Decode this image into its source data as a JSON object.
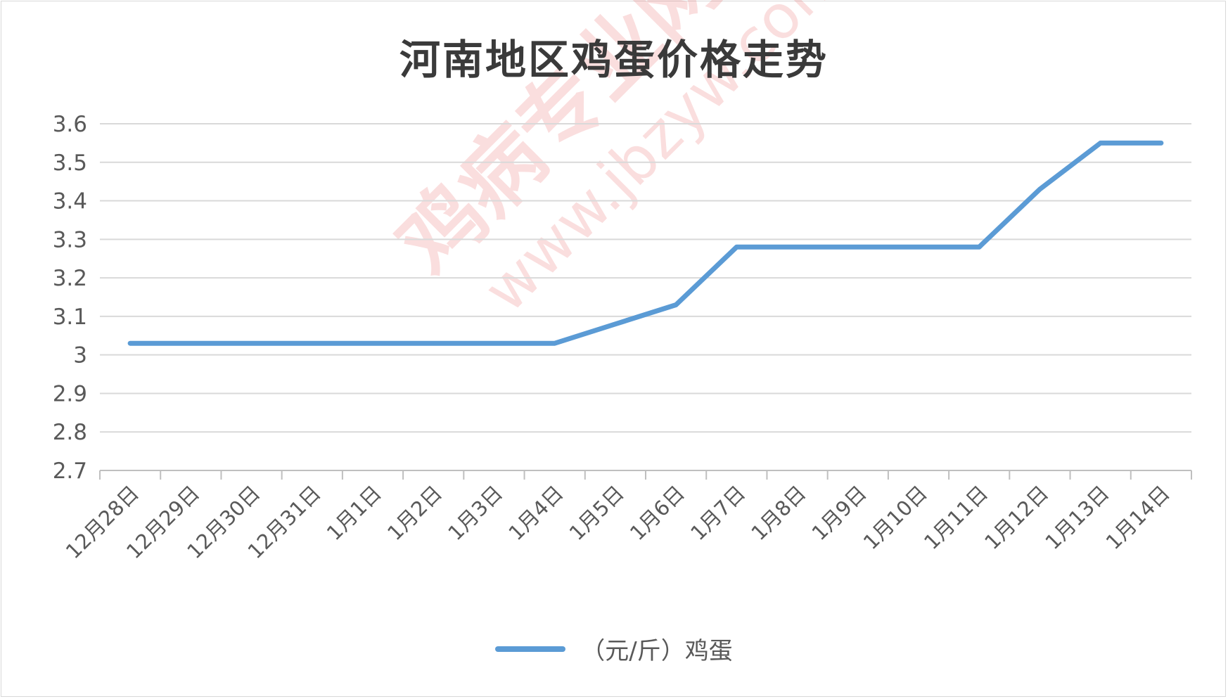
{
  "title": "河南地区鸡蛋价格走势",
  "watermark": {
    "main": "鸡病专业网",
    "url": "www.jbzyw.com"
  },
  "colors": {
    "series": "#5b9bd5",
    "grid": "#d9d9d9",
    "axis": "#bfbfbf",
    "text": "#595959",
    "title": "#3a3a3a"
  },
  "chart_data": {
    "type": "line",
    "title": "河南地区鸡蛋价格走势",
    "xlabel": "",
    "ylabel": "",
    "ylim": [
      2.7,
      3.6
    ],
    "yticks": [
      2.7,
      2.8,
      2.9,
      3,
      3.1,
      3.2,
      3.3,
      3.4,
      3.5,
      3.6
    ],
    "ytick_labels": [
      "2.7",
      "2.8",
      "2.9",
      "3",
      "3.1",
      "3.2",
      "3.3",
      "3.4",
      "3.5",
      "3.6"
    ],
    "grid": true,
    "legend": "bottom",
    "categories": [
      "12月28日",
      "12月29日",
      "12月30日",
      "12月31日",
      "1月1日",
      "1月2日",
      "1月3日",
      "1月4日",
      "1月5日",
      "1月6日",
      "1月7日",
      "1月8日",
      "1月9日",
      "1月10日",
      "1月11日",
      "1月12日",
      "1月13日",
      "1月14日"
    ],
    "series": [
      {
        "name": "（元/斤）鸡蛋",
        "values": [
          3.03,
          3.03,
          3.03,
          3.03,
          3.03,
          3.03,
          3.03,
          3.03,
          3.08,
          3.13,
          3.28,
          3.28,
          3.28,
          3.28,
          3.28,
          3.43,
          3.55,
          3.55
        ]
      }
    ]
  }
}
